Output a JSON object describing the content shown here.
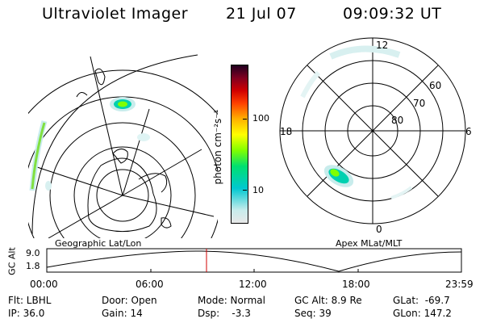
{
  "header": {
    "instrument": "Ultraviolet Imager",
    "date": "21 Jul 07",
    "time": "09:09:32 UT"
  },
  "left_map": {
    "label": "Geographic Lat/Lon"
  },
  "color_bar": {
    "unit_label": "photon cm⁻²s⁻¹",
    "ticks": [
      "100",
      "10"
    ],
    "scale": "log",
    "colors": [
      "#e8e8e8",
      "#c8ecec",
      "#00c8d0",
      "#00e070",
      "#80ff00",
      "#ffff00",
      "#ffb000",
      "#ff4000",
      "#d00000",
      "#800020",
      "#200020"
    ]
  },
  "right_map": {
    "label": "Apex MLat/MLT",
    "mlt_labels": {
      "top": "12",
      "left": "18",
      "right": "6",
      "bottom": "0"
    },
    "lat_labels": [
      "60",
      "70",
      "80"
    ]
  },
  "altitude_plot": {
    "ylabel": "GC Alt",
    "yticks": [
      "9.0",
      "1.8"
    ],
    "xticks": [
      "00:00",
      "06:00",
      "12:00",
      "18:00",
      "23:59"
    ],
    "current_time_marker": "09:09:32"
  },
  "status": {
    "flt": "Flt: LBHL",
    "ip": "IP: 36.0",
    "door": "Door: Open",
    "gain": "Gain: 14",
    "mode": "Mode: Normal",
    "dsp": "Dsp:    -3.3",
    "gc_alt": "GC Alt: 8.9 Re",
    "seq": "Seq: 39",
    "glat": "GLat:  -69.7",
    "glon": "GLon: 147.2"
  }
}
